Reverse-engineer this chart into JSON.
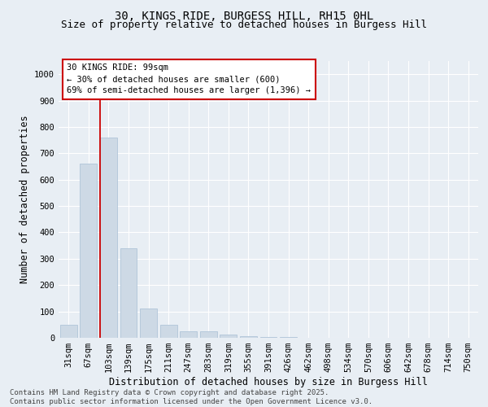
{
  "title1": "30, KINGS RIDE, BURGESS HILL, RH15 0HL",
  "title2": "Size of property relative to detached houses in Burgess Hill",
  "xlabel": "Distribution of detached houses by size in Burgess Hill",
  "ylabel": "Number of detached properties",
  "categories": [
    "31sqm",
    "67sqm",
    "103sqm",
    "139sqm",
    "175sqm",
    "211sqm",
    "247sqm",
    "283sqm",
    "319sqm",
    "355sqm",
    "391sqm",
    "426sqm",
    "462sqm",
    "498sqm",
    "534sqm",
    "570sqm",
    "606sqm",
    "642sqm",
    "678sqm",
    "714sqm",
    "750sqm"
  ],
  "values": [
    50,
    660,
    760,
    340,
    110,
    50,
    25,
    25,
    12,
    5,
    3,
    2,
    1,
    1,
    0,
    0,
    0,
    0,
    0,
    0,
    0
  ],
  "bar_color": "#cdd9e5",
  "bar_edgecolor": "#b0c4d8",
  "vline_color": "#cc0000",
  "annotation_text": "30 KINGS RIDE: 99sqm\n← 30% of detached houses are smaller (600)\n69% of semi-detached houses are larger (1,396) →",
  "ylim": [
    0,
    1050
  ],
  "yticks": [
    0,
    100,
    200,
    300,
    400,
    500,
    600,
    700,
    800,
    900,
    1000
  ],
  "bg_color": "#e8eef4",
  "grid_color": "#ffffff",
  "footer_line1": "Contains HM Land Registry data © Crown copyright and database right 2025.",
  "footer_line2": "Contains public sector information licensed under the Open Government Licence v3.0.",
  "title1_fontsize": 10,
  "title2_fontsize": 9,
  "xlabel_fontsize": 8.5,
  "ylabel_fontsize": 8.5,
  "tick_fontsize": 7.5,
  "annotation_fontsize": 7.5,
  "footer_fontsize": 6.5
}
